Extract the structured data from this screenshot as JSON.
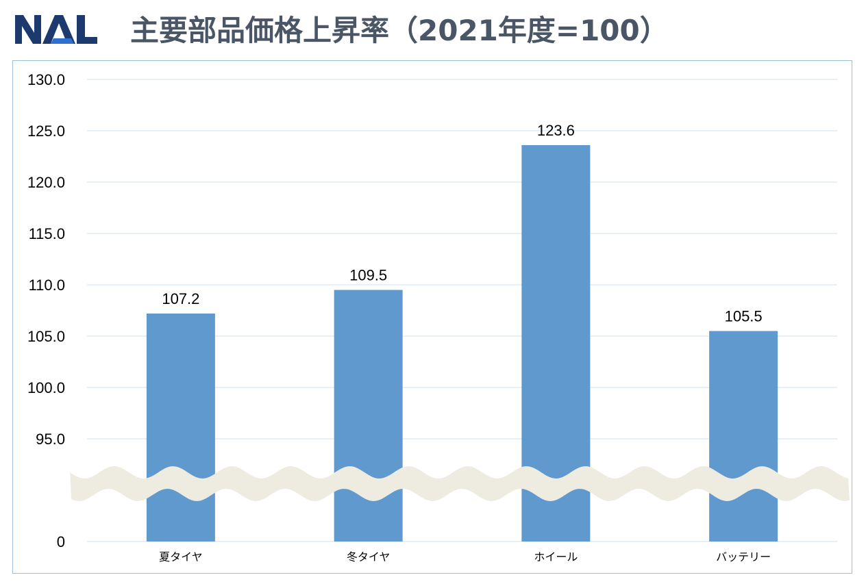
{
  "logo": {
    "text": "NAL",
    "color": "#1d3a6e",
    "accent": "#2f6fd0"
  },
  "title": "主要部品価格上昇率（2021年度=100）",
  "chart_data": {
    "type": "bar",
    "title": "主要部品価格上昇率（2021年度=100）",
    "categories": [
      "夏タイヤ",
      "冬タイヤ",
      "ホイール",
      "バッテリー"
    ],
    "values": [
      107.2,
      109.5,
      123.6,
      105.5
    ],
    "value_labels": [
      "107.2",
      "109.5",
      "123.6",
      "105.5"
    ],
    "y_ticks": [
      0,
      95,
      100,
      105,
      110,
      115,
      120,
      125,
      130
    ],
    "y_tick_labels": [
      "0",
      "95.0",
      "100.0",
      "105.0",
      "110.0",
      "115.0",
      "120.0",
      "125.0",
      "130.0"
    ],
    "ylim": [
      95,
      130
    ],
    "axis_break": "between 0 and 95.0",
    "grid": true,
    "bar_color": "#6099cd",
    "gridline_color": "#cfe0ee",
    "break_band_color": "#eeebe0",
    "xlabel": "",
    "ylabel": ""
  }
}
